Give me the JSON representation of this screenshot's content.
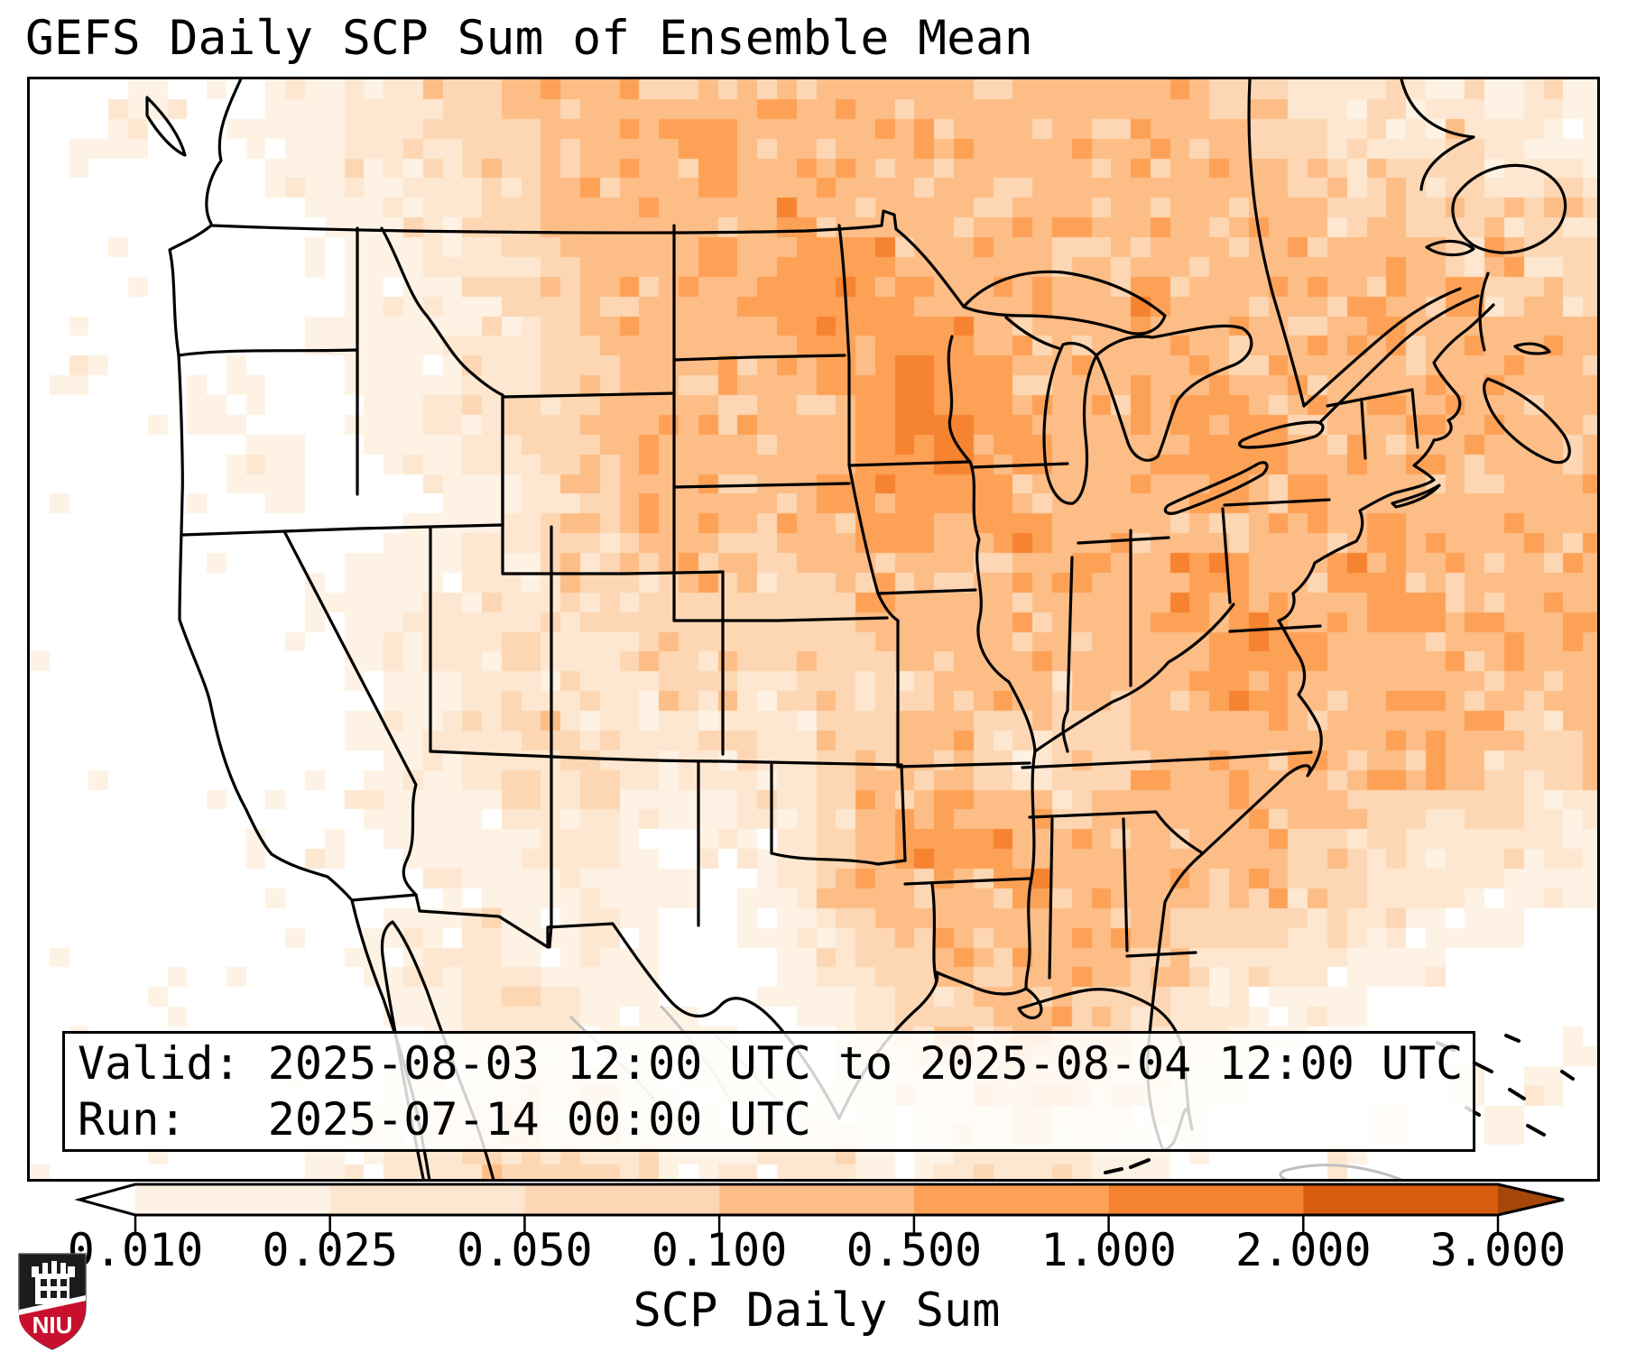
{
  "title": "GEFS Daily SCP Sum of Ensemble Mean",
  "info_box": {
    "line1": "Valid: 2025-08-03 12:00 UTC to 2025-08-04 12:00 UTC",
    "line2": "Run:   2025-07-14 00:00 UTC"
  },
  "colorbar": {
    "label": "SCP Daily Sum",
    "ticks": [
      "0.010",
      "0.025",
      "0.050",
      "0.100",
      "0.500",
      "1.000",
      "2.000",
      "3.000"
    ],
    "under_color": "#ffffff",
    "over_color": "#a64708",
    "segment_colors": [
      "#fdf2e3",
      "#fee7d0",
      "#fdd7b3",
      "#fdbd86",
      "#fda157",
      "#f5832f",
      "#d85c0d"
    ]
  },
  "logo": {
    "text": "NIU",
    "shield_black": "#1c1c1c",
    "shield_red": "#c8102e"
  },
  "map_grid": {
    "palette": [
      "#ffffff",
      "#fdf2e3",
      "#fee7d0",
      "#fdd7b3",
      "#fdbd86",
      "#fda157",
      "#f5832f",
      "#d85c0d",
      "#a64708"
    ],
    "rows": [
      "0011001122334444444444444444443322322121",
      "0110011122334444554444444444444332223211",
      "0000001122233444454444444444444433333222",
      "0000000112233444444544444444444443433333",
      "0000000111223344454555444444444444443433",
      "0000000011123344445555544444544444444343",
      "0000000111122334444555554444444444444444",
      "0100010011122334444455655444444444444444",
      "0000110011223344444445665444455444444444",
      "0000011001122344444445565544455544444444",
      "0000001000112334444455555444445444444444",
      "0000000001122334443445545544444444544444",
      "0000000011122333443344444554455445544444",
      "0000000111222233333334444444455544554444",
      "0000000011223223333333444444445554444444",
      "0000000001122222332333344434445544444444",
      "0000000011223322222233443333444444444434",
      "0000000001122232122234443233444444444333",
      "0000000011112221112234454434444444333322",
      "0000000101111221011234555444444433322221",
      "0000000000111111101234444544444433222111",
      "0000000001121121001123444444433322211100",
      "0000000011222111000123344444332221110000",
      "0000000001123211100112334443322111000000",
      "0000000000122211110012233433221100000001",
      "0000000001112221111111223332211000001010",
      "0000000011223221111111122322110000100100",
      "0000000112233322111221122221100001000000"
    ]
  }
}
